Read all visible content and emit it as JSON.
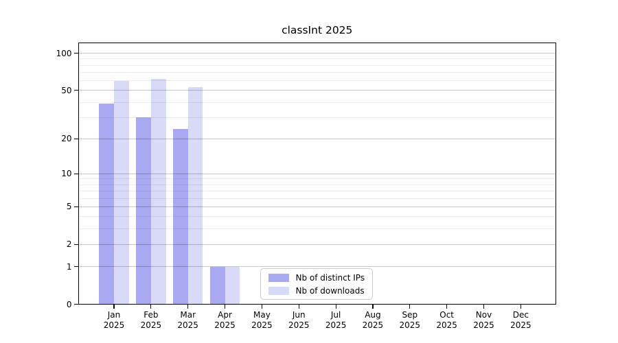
{
  "chart_data": {
    "type": "bar",
    "title": "classInt 2025",
    "categories": [
      "Jan",
      "Feb",
      "Mar",
      "Apr",
      "May",
      "Jun",
      "Jul",
      "Aug",
      "Sep",
      "Oct",
      "Nov",
      "Dec"
    ],
    "x_tick_year": "2025",
    "series": [
      {
        "name": "Nb of distinct IPs",
        "color": "#a9a9f1",
        "values": [
          39,
          30,
          24,
          1,
          0,
          0,
          0,
          0,
          0,
          0,
          0,
          0
        ]
      },
      {
        "name": "Nb of downloads",
        "color": "#d9d9f8",
        "values": [
          60,
          62,
          53,
          1,
          0,
          0,
          0,
          0,
          0,
          0,
          0,
          0
        ]
      }
    ],
    "y_scale": "log1p",
    "ylim": [
      0,
      100
    ],
    "y_ticks": [
      100,
      50,
      20,
      10,
      5,
      2,
      1,
      0
    ],
    "y_major_gridlines": [
      1,
      2,
      5,
      10,
      20,
      50,
      100
    ],
    "y_minor_gridlines": [
      3,
      4,
      6,
      7,
      8,
      9,
      30,
      40,
      60,
      70,
      80,
      90
    ],
    "grid": true,
    "legend_position": "inside-lower-center",
    "axis_color": "#000000",
    "gridline_major_color": "#c7c7c7",
    "gridline_minor_color": "#ededed",
    "background_color": "#ffffff"
  }
}
